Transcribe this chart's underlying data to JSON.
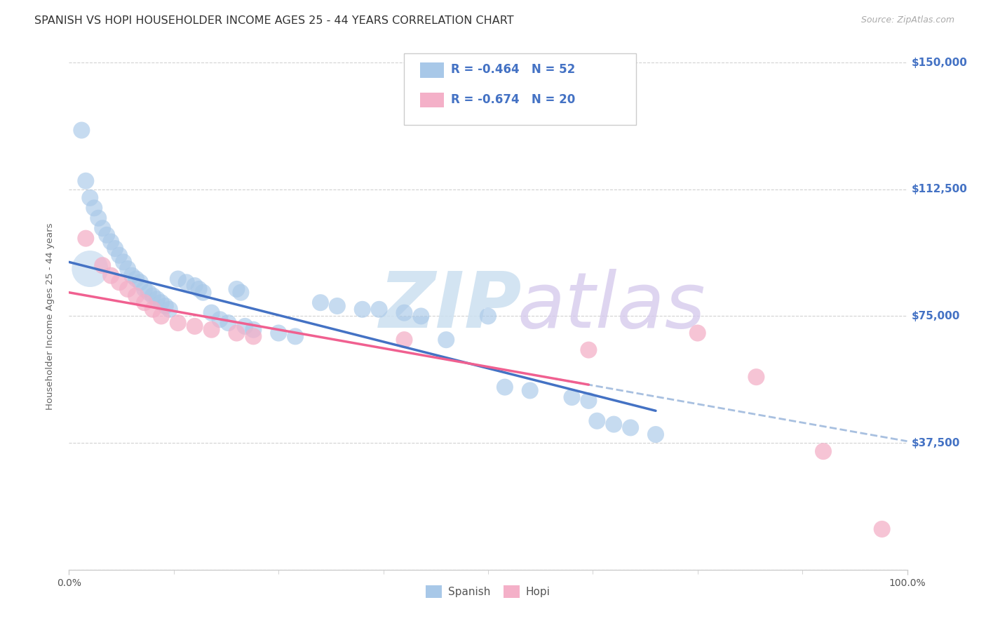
{
  "title": "SPANISH VS HOPI HOUSEHOLDER INCOME AGES 25 - 44 YEARS CORRELATION CHART",
  "source": "Source: ZipAtlas.com",
  "ylabel": "Householder Income Ages 25 - 44 years",
  "xlim": [
    0,
    100
  ],
  "ylim": [
    0,
    150000
  ],
  "yticks": [
    0,
    37500,
    75000,
    112500,
    150000
  ],
  "ytick_labels": [
    "",
    "$37,500",
    "$75,000",
    "$112,500",
    "$150,000"
  ],
  "background_color": "#ffffff",
  "grid_color": "#cccccc",
  "spanish_color": "#a8c8e8",
  "hopi_color": "#f4b0c8",
  "spanish_line_color": "#4472c4",
  "hopi_line_color": "#f06090",
  "hopi_dash_color": "#a8c0e0",
  "legend_blue_fill": "#a8c8e8",
  "legend_pink_fill": "#f4b0c8",
  "legend_text_color": "#4472c4",
  "yticklabel_color": "#4472c4",
  "title_color": "#333333",
  "source_color": "#aaaaaa",
  "spanish_points": [
    [
      1.5,
      130000
    ],
    [
      2.0,
      115000
    ],
    [
      2.5,
      110000
    ],
    [
      3.0,
      107000
    ],
    [
      3.5,
      104000
    ],
    [
      4.0,
      101000
    ],
    [
      4.5,
      99000
    ],
    [
      5.0,
      97000
    ],
    [
      5.5,
      95000
    ],
    [
      6.0,
      93000
    ],
    [
      6.5,
      91000
    ],
    [
      7.0,
      89000
    ],
    [
      7.5,
      87000
    ],
    [
      8.0,
      86000
    ],
    [
      8.5,
      85000
    ],
    [
      9.0,
      83000
    ],
    [
      9.5,
      82000
    ],
    [
      10.0,
      81000
    ],
    [
      10.5,
      80000
    ],
    [
      11.0,
      79000
    ],
    [
      11.5,
      78000
    ],
    [
      12.0,
      77000
    ],
    [
      13.0,
      86000
    ],
    [
      14.0,
      85000
    ],
    [
      15.0,
      84000
    ],
    [
      15.5,
      83000
    ],
    [
      16.0,
      82000
    ],
    [
      17.0,
      76000
    ],
    [
      18.0,
      74000
    ],
    [
      19.0,
      73000
    ],
    [
      20.0,
      83000
    ],
    [
      20.5,
      82000
    ],
    [
      21.0,
      72000
    ],
    [
      22.0,
      71000
    ],
    [
      25.0,
      70000
    ],
    [
      27.0,
      69000
    ],
    [
      30.0,
      79000
    ],
    [
      32.0,
      78000
    ],
    [
      35.0,
      77000
    ],
    [
      37.0,
      77000
    ],
    [
      40.0,
      76000
    ],
    [
      42.0,
      75000
    ],
    [
      45.0,
      68000
    ],
    [
      50.0,
      75000
    ],
    [
      52.0,
      54000
    ],
    [
      55.0,
      53000
    ],
    [
      60.0,
      51000
    ],
    [
      62.0,
      50000
    ],
    [
      63.0,
      44000
    ],
    [
      65.0,
      43000
    ],
    [
      67.0,
      42000
    ],
    [
      70.0,
      40000
    ]
  ],
  "hopi_points": [
    [
      2.0,
      98000
    ],
    [
      4.0,
      90000
    ],
    [
      5.0,
      87000
    ],
    [
      6.0,
      85000
    ],
    [
      7.0,
      83000
    ],
    [
      8.0,
      81000
    ],
    [
      9.0,
      79000
    ],
    [
      10.0,
      77000
    ],
    [
      11.0,
      75000
    ],
    [
      13.0,
      73000
    ],
    [
      15.0,
      72000
    ],
    [
      17.0,
      71000
    ],
    [
      20.0,
      70000
    ],
    [
      22.0,
      69000
    ],
    [
      40.0,
      68000
    ],
    [
      62.0,
      65000
    ],
    [
      75.0,
      70000
    ],
    [
      82.0,
      57000
    ],
    [
      90.0,
      35000
    ],
    [
      97.0,
      12000
    ]
  ],
  "spanish_cluster_x": 2.5,
  "spanish_cluster_y": 89000,
  "spanish_cluster_size": 1400,
  "spanish_reg_x0": 0,
  "spanish_reg_x1": 70,
  "spanish_reg_y0": 91000,
  "spanish_reg_y1": 47000,
  "hopi_reg_x0": 0,
  "hopi_reg_x1": 100,
  "hopi_reg_y0": 82000,
  "hopi_reg_y1": 38000,
  "hopi_solid_end": 62,
  "hopi_dash_start": 58
}
